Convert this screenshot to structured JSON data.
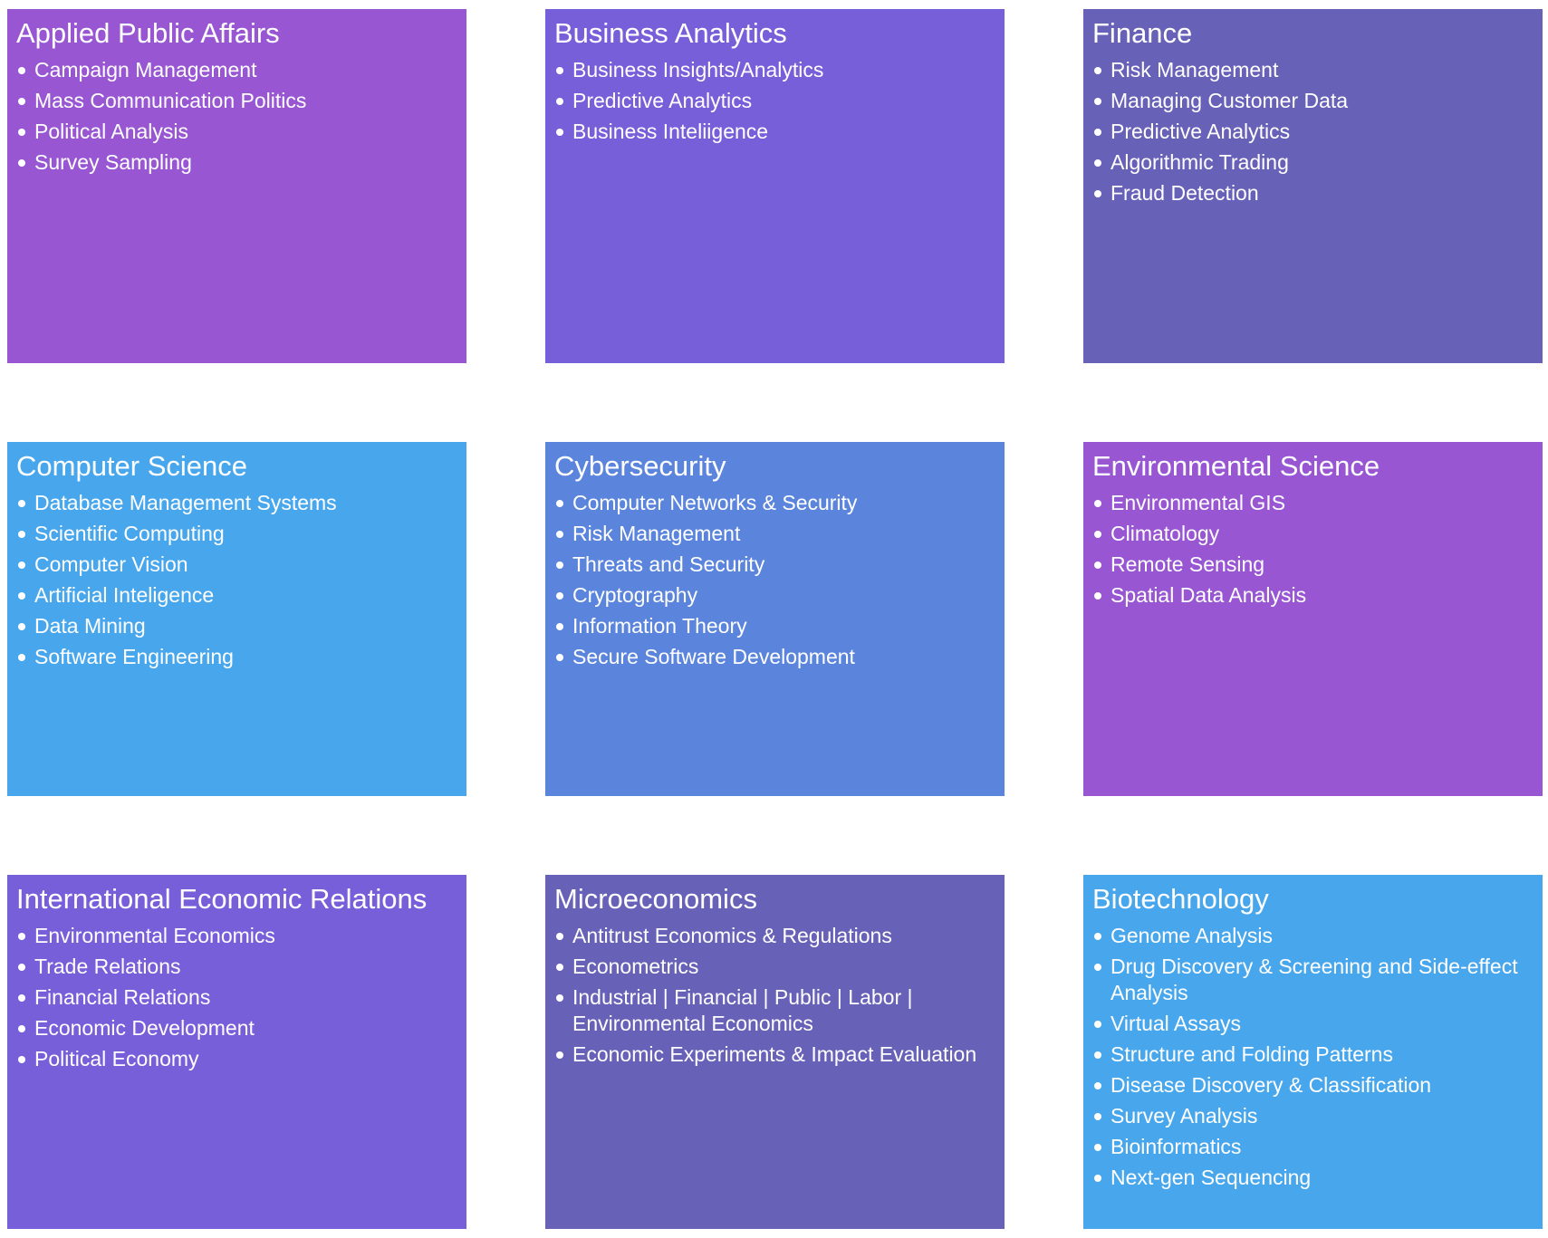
{
  "cards": [
    {
      "title": "Applied Public Affairs",
      "color": "#9956d3",
      "items": [
        "Campaign Management",
        "Mass Communication Politics",
        "Political Analysis",
        "Survey Sampling"
      ]
    },
    {
      "title": "Business Analytics",
      "color": "#775fda",
      "items": [
        "Business Insights/Analytics",
        "Predictive Analytics",
        "Business Inteliigence"
      ]
    },
    {
      "title": "Finance",
      "color": "#6861b8",
      "items": [
        "Risk Management",
        "Managing Customer Data",
        "Predictive Analytics",
        "Algorithmic Trading",
        "Fraud Detection"
      ]
    },
    {
      "title": "Computer Science",
      "color": "#48a7ec",
      "items": [
        "Database Management Systems",
        "Scientific Computing",
        "Computer Vision",
        "Artificial Inteligence",
        "Data Mining",
        "Software Engineering"
      ]
    },
    {
      "title": "Cybersecurity",
      "color": "#5b85dc",
      "items": [
        "Computer Networks & Security",
        "Risk Management",
        "Threats and Security",
        "Cryptography",
        "Information Theory",
        "Secure Software Development"
      ]
    },
    {
      "title": "Environmental Science",
      "color": "#9956d3",
      "items": [
        "Environmental GIS",
        "Climatology",
        "Remote Sensing",
        "Spatial Data Analysis"
      ]
    },
    {
      "title": "International Economic Relations",
      "color": "#775fda",
      "items": [
        "Environmental Economics",
        "Trade Relations",
        "Financial Relations",
        "Economic Development",
        "Political Economy"
      ]
    },
    {
      "title": "Microeconomics",
      "color": "#6861b8",
      "items": [
        "Antitrust Economics & Regulations",
        "Econometrics",
        "Industrial | Financial | Public | Labor | Environmental Economics",
        "Economic Experiments & Impact Evaluation"
      ]
    },
    {
      "title": "Biotechnology",
      "color": "#48a7ec",
      "items": [
        "Genome Analysis",
        "Drug Discovery & Screening and Side-effect Analysis",
        "Virtual Assays",
        "Structure and Folding Patterns",
        "Disease Discovery & Classification",
        "Survey Analysis",
        "Bioinformatics",
        "Next-gen Sequencing"
      ]
    }
  ]
}
